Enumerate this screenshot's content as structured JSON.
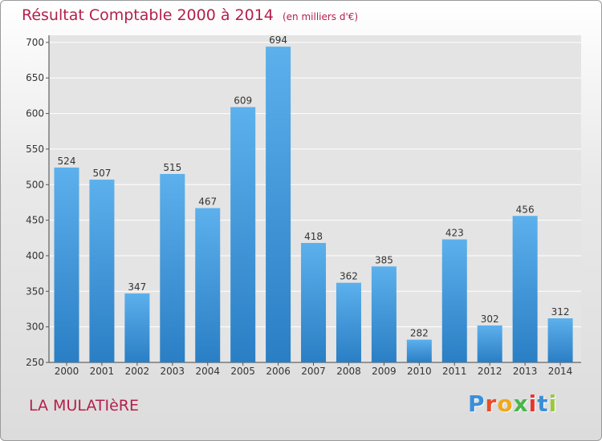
{
  "chart_data": {
    "type": "bar",
    "title": "Résultat Comptable 2000 à 2014",
    "subtitle": "(en milliers d'€)",
    "categories": [
      "2000",
      "2001",
      "2002",
      "2003",
      "2004",
      "2005",
      "2006",
      "2007",
      "2008",
      "2009",
      "2010",
      "2011",
      "2012",
      "2013",
      "2014"
    ],
    "values": [
      524,
      507,
      347,
      515,
      467,
      609,
      694,
      418,
      362,
      385,
      282,
      423,
      302,
      456,
      312
    ],
    "yticks": [
      250,
      300,
      350,
      400,
      450,
      500,
      550,
      600,
      650,
      700
    ],
    "ylim": [
      250,
      710
    ],
    "xlabel": "",
    "ylabel": "",
    "grid": true
  },
  "footer": {
    "place": "LA MULATIèRE"
  },
  "logo": {
    "text": "Proxiti",
    "letters": [
      "P",
      "r",
      "o",
      "x",
      "i",
      "t",
      "i"
    ],
    "colors": [
      "#3a8fd8",
      "#e84d2a",
      "#f0a81c",
      "#49b649",
      "#e8352f",
      "#3a8fd8",
      "#9bc93b"
    ]
  },
  "colors": {
    "accent": "#b41f4b",
    "bar": "#3a8fd8"
  }
}
